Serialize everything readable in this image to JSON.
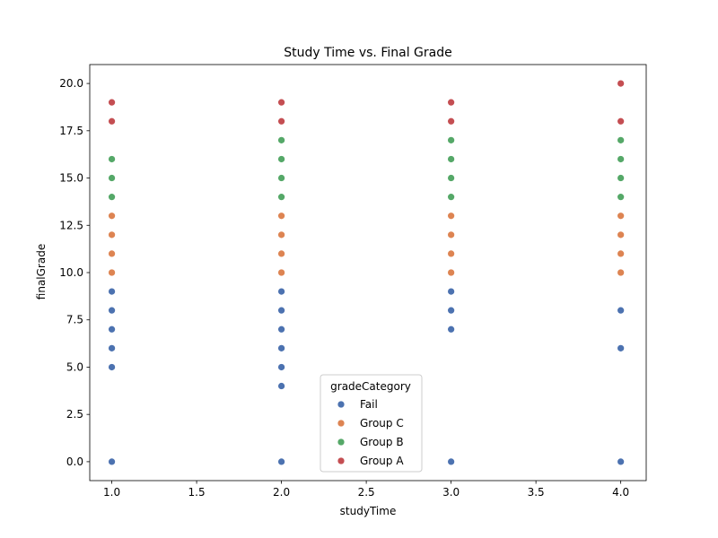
{
  "chart_data": {
    "type": "scatter",
    "title": "Study Time vs. Final Grade",
    "xlabel": "studyTime",
    "ylabel": "finalGrade",
    "xlim": [
      0.87,
      4.15
    ],
    "ylim": [
      -1.0,
      21.0
    ],
    "xticks": [
      1.0,
      1.5,
      2.0,
      2.5,
      3.0,
      3.5,
      4.0
    ],
    "xtick_labels": [
      "1.0",
      "1.5",
      "2.0",
      "2.5",
      "3.0",
      "3.5",
      "4.0"
    ],
    "yticks": [
      0.0,
      2.5,
      5.0,
      7.5,
      10.0,
      12.5,
      15.0,
      17.5,
      20.0
    ],
    "ytick_labels": [
      "0.0",
      "2.5",
      "5.0",
      "7.5",
      "10.0",
      "12.5",
      "15.0",
      "17.5",
      "20.0"
    ],
    "grid": false,
    "legend": {
      "title": "gradeCategory",
      "position": "lower-center"
    },
    "series": [
      {
        "name": "Fail",
        "color": "#4c72b0",
        "points": [
          [
            1,
            0
          ],
          [
            1,
            5
          ],
          [
            1,
            6
          ],
          [
            1,
            7
          ],
          [
            1,
            8
          ],
          [
            1,
            9
          ],
          [
            2,
            0
          ],
          [
            2,
            4
          ],
          [
            2,
            5
          ],
          [
            2,
            6
          ],
          [
            2,
            7
          ],
          [
            2,
            8
          ],
          [
            2,
            9
          ],
          [
            3,
            0
          ],
          [
            3,
            7
          ],
          [
            3,
            8
          ],
          [
            3,
            9
          ],
          [
            4,
            0
          ],
          [
            4,
            6
          ],
          [
            4,
            8
          ]
        ]
      },
      {
        "name": "Group C",
        "color": "#dd8452",
        "points": [
          [
            1,
            10
          ],
          [
            1,
            11
          ],
          [
            1,
            12
          ],
          [
            1,
            13
          ],
          [
            2,
            10
          ],
          [
            2,
            11
          ],
          [
            2,
            12
          ],
          [
            2,
            13
          ],
          [
            3,
            10
          ],
          [
            3,
            11
          ],
          [
            3,
            12
          ],
          [
            3,
            13
          ],
          [
            4,
            10
          ],
          [
            4,
            11
          ],
          [
            4,
            12
          ],
          [
            4,
            13
          ]
        ]
      },
      {
        "name": "Group B",
        "color": "#55a868",
        "points": [
          [
            1,
            14
          ],
          [
            1,
            15
          ],
          [
            1,
            16
          ],
          [
            2,
            14
          ],
          [
            2,
            15
          ],
          [
            2,
            16
          ],
          [
            2,
            17
          ],
          [
            3,
            14
          ],
          [
            3,
            15
          ],
          [
            3,
            16
          ],
          [
            3,
            17
          ],
          [
            4,
            14
          ],
          [
            4,
            15
          ],
          [
            4,
            16
          ],
          [
            4,
            17
          ]
        ]
      },
      {
        "name": "Group A",
        "color": "#c44e52",
        "points": [
          [
            1,
            18
          ],
          [
            1,
            19
          ],
          [
            2,
            18
          ],
          [
            2,
            19
          ],
          [
            3,
            18
          ],
          [
            3,
            19
          ],
          [
            4,
            18
          ],
          [
            4,
            20
          ]
        ]
      }
    ]
  }
}
